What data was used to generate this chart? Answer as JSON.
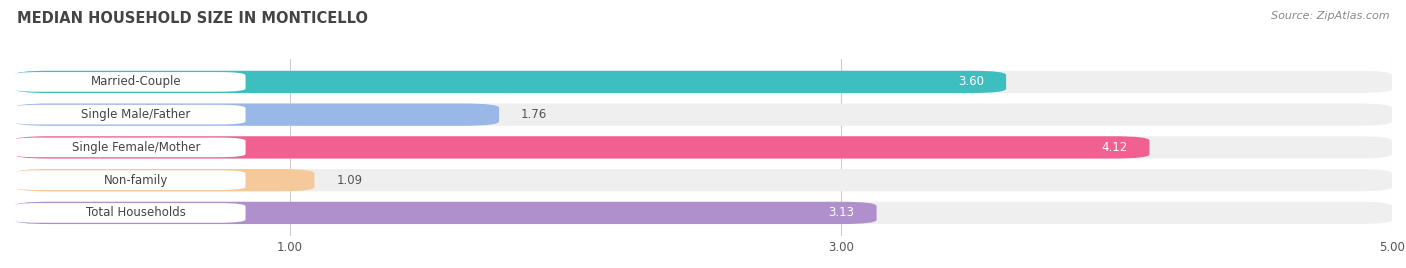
{
  "title": "MEDIAN HOUSEHOLD SIZE IN MONTICELLO",
  "source": "Source: ZipAtlas.com",
  "categories": [
    "Married-Couple",
    "Single Male/Father",
    "Single Female/Mother",
    "Non-family",
    "Total Households"
  ],
  "values": [
    3.6,
    1.76,
    4.12,
    1.09,
    3.13
  ],
  "bar_colors": [
    "#3dbfbf",
    "#99b8e8",
    "#f06090",
    "#f5c99a",
    "#b090cc"
  ],
  "bar_bg_color": "#efefef",
  "xmin": 0.0,
  "xmax": 5.0,
  "xticks": [
    1.0,
    3.0,
    5.0
  ],
  "xtick_labels": [
    "1.00",
    "3.00",
    "5.00"
  ],
  "label_color": "#555555",
  "value_color_dark": "#555555",
  "value_color_light": "#ffffff",
  "title_color": "#444444",
  "source_color": "#888888",
  "background_color": "#ffffff",
  "bar_height": 0.68,
  "bar_gap": 0.32
}
